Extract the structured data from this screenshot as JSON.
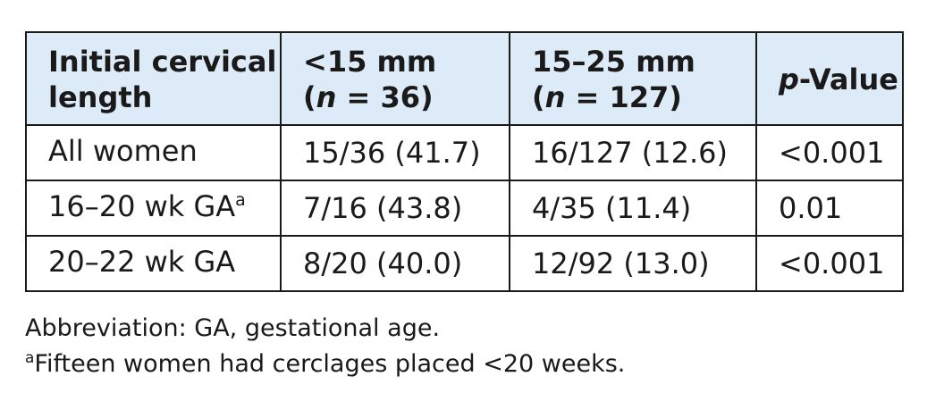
{
  "table": {
    "header": {
      "col1": {
        "line1": "Initial cervical",
        "line2": "length"
      },
      "col2": {
        "line1": "<15 mm",
        "open": "(",
        "n_var": "n",
        "n_eq": " = 36)"
      },
      "col3": {
        "line1": "15–25 mm",
        "open": "(",
        "n_var": "n",
        "n_eq": " = 127)"
      },
      "col4": {
        "p_var": "p",
        "rest": "-Value"
      }
    },
    "rows": [
      {
        "label": "All women",
        "footnote_mark": "",
        "lt15": "15/36 (41.7)",
        "mid": "16/127 (12.6)",
        "p": "<0.001"
      },
      {
        "label": "16–20 wk GA",
        "footnote_mark": "a",
        "lt15": "7/16 (43.8)",
        "mid": "4/35 (11.4)",
        "p": "0.01"
      },
      {
        "label": "20–22 wk GA",
        "footnote_mark": "",
        "lt15": "8/20 (40.0)",
        "mid": "12/92 (13.0)",
        "p": "<0.001"
      }
    ]
  },
  "footnotes": {
    "abbreviation": "Abbreviation: GA, gestational age.",
    "note_mark": "a",
    "note_text": "Fifteen women had cerclages placed <20 weeks."
  }
}
